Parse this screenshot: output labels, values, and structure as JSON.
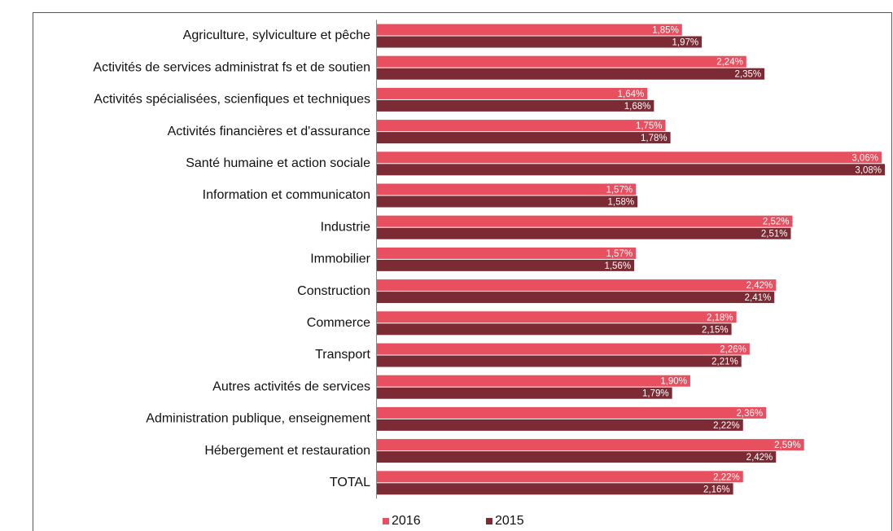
{
  "chart_data": {
    "type": "barh",
    "categories": [
      "Agriculture, sylviculture et pêche",
      "Activités de services administrat fs et de soutien",
      "Activités spécialisées, scienfiques   et techniques",
      "Activités financières et d'assurance",
      "Santé humaine et action sociale",
      "Information et communicaton",
      "Industrie",
      "Immobilier",
      "Construction",
      "Commerce",
      "Transport",
      "Autres activités de services",
      "Administration publique, enseignement",
      "Hébergement et restauration",
      "TOTAL"
    ],
    "series": [
      {
        "name": "2016",
        "color": "#e8505f",
        "values": [
          1.85,
          2.24,
          1.64,
          1.75,
          3.06,
          1.57,
          2.52,
          1.57,
          2.42,
          2.18,
          2.26,
          1.9,
          2.36,
          2.59,
          2.22
        ],
        "value_labels": [
          "1,85%",
          "2,24%",
          "1,64%",
          "1,75%",
          "3,06%",
          "1,57%",
          "2,52%",
          "1,57%",
          "2,42%",
          "2,18%",
          "2,26%",
          "1,90%",
          "2,36%",
          "2,59%",
          "2,22%"
        ]
      },
      {
        "name": "2015",
        "color": "#7c2a33",
        "values": [
          1.97,
          2.35,
          1.68,
          1.78,
          3.08,
          1.58,
          2.51,
          1.56,
          2.41,
          2.15,
          2.21,
          1.79,
          2.22,
          2.42,
          2.16
        ],
        "value_labels": [
          "1,97%",
          "2,35%",
          "1,68%",
          "1,78%",
          "3,08%",
          "1,58%",
          "2,51%",
          "1,56%",
          "2,41%",
          "2,15%",
          "2,21%",
          "1,79%",
          "2,22%",
          "2,42%",
          "2,16%"
        ]
      }
    ],
    "legend": "bottom"
  }
}
